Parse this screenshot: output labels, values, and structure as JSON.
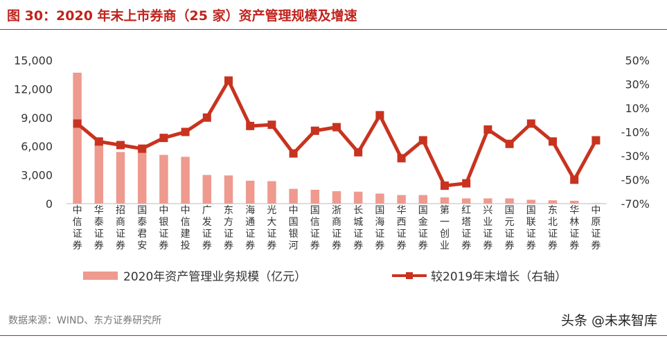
{
  "title": "图 30：2020 年末上市券商（25 家）资产管理规模及增速",
  "source": "数据来源：WIND、东方证券研究所",
  "watermark": "头条 @未来智库",
  "colors": {
    "bar": "#ee9a8f",
    "line": "#c8331f",
    "title": "#c0231c",
    "axis": "#333333"
  },
  "chart_data": {
    "type": "bar",
    "categories": [
      "中信证券",
      "华泰证券",
      "招商证券",
      "国泰君安",
      "中银证券",
      "中信建投",
      "广发证券",
      "东方证券",
      "海通证券",
      "光大证券",
      "中国银河",
      "国信证券",
      "浙商证券",
      "长城证券",
      "国海证券",
      "华西证券",
      "国金证券",
      "第一创业",
      "红塔证券",
      "兴业证券",
      "国元证券",
      "国联证券",
      "东北证券",
      "华林证券",
      "中原证券"
    ],
    "series": [
      {
        "name": "2020年资产管理业务规模（亿元）",
        "type": "bar",
        "axis": "left",
        "values": [
          13700,
          6300,
          5400,
          5800,
          5100,
          4900,
          3000,
          2950,
          2400,
          2350,
          1550,
          1450,
          1300,
          1250,
          1050,
          900,
          900,
          650,
          550,
          550,
          550,
          400,
          350,
          300,
          50
        ]
      },
      {
        "name": "较2019年末增长（右轴）",
        "type": "line",
        "axis": "right",
        "values": [
          -3,
          -18,
          -21,
          -24,
          -15,
          -10,
          2,
          33,
          -5,
          -4,
          -28,
          -9,
          -6,
          -27,
          4,
          -32,
          -17,
          -55,
          -53,
          -8,
          -20,
          -3,
          -18,
          -50,
          -17
        ]
      }
    ],
    "left_axis": {
      "ylim": [
        0,
        15000
      ],
      "ticks": [
        "0",
        "3,000",
        "6,000",
        "9,000",
        "12,000",
        "15,000"
      ]
    },
    "right_axis": {
      "ylim": [
        -70,
        50
      ],
      "ticks": [
        "-70%",
        "-50%",
        "-30%",
        "-10%",
        "10%",
        "30%",
        "50%"
      ]
    },
    "legend": {
      "position": "bottom"
    }
  }
}
